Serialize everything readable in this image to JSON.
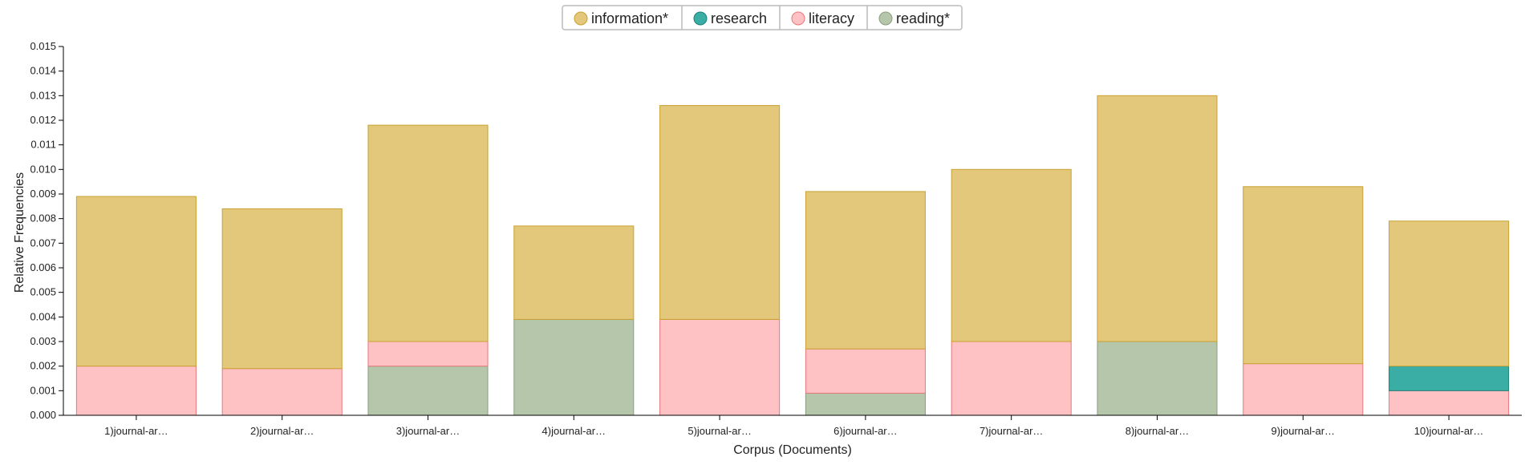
{
  "chart_data": {
    "type": "bar",
    "stacked": true,
    "title": "",
    "xlabel": "Corpus (Documents)",
    "ylabel": "Relative Frequencies",
    "ylim": [
      0,
      0.015
    ],
    "yticks": [
      "0.000",
      "0.001",
      "0.002",
      "0.003",
      "0.004",
      "0.005",
      "0.006",
      "0.007",
      "0.008",
      "0.009",
      "0.010",
      "0.011",
      "0.012",
      "0.013",
      "0.014",
      "0.015"
    ],
    "categories": [
      "1)journal-ar…",
      "2)journal-ar…",
      "3)journal-ar…",
      "4)journal-ar…",
      "5)journal-ar…",
      "6)journal-ar…",
      "7)journal-ar…",
      "8)journal-ar…",
      "9)journal-ar…",
      "10)journal-ar…"
    ],
    "legend_position": "top-center",
    "series": [
      {
        "name": "information*",
        "color": "#e3c77a",
        "stroke": "#c9a233",
        "values": [
          0.0069,
          0.0065,
          0.0088,
          0.0038,
          0.0087,
          0.0064,
          0.007,
          0.01,
          0.0072,
          0.0059
        ]
      },
      {
        "name": "research",
        "color": "#3aada5",
        "stroke": "#1f7f78",
        "values": [
          0,
          0,
          0,
          0,
          0,
          0,
          0,
          0,
          0,
          0.001
        ]
      },
      {
        "name": "literacy",
        "color": "#ffc2c4",
        "stroke": "#e8777b",
        "values": [
          0.002,
          0.0019,
          0.001,
          0,
          0.0039,
          0.0018,
          0.003,
          0,
          0.0021,
          0.001
        ]
      },
      {
        "name": "reading*",
        "color": "#b5c6ab",
        "stroke": "#8a9e80",
        "values": [
          0,
          0,
          0.002,
          0.0039,
          0,
          0.0009,
          0,
          0.003,
          0,
          0
        ]
      }
    ],
    "stack_order": [
      "reading*",
      "literacy",
      "research",
      "information*"
    ]
  }
}
